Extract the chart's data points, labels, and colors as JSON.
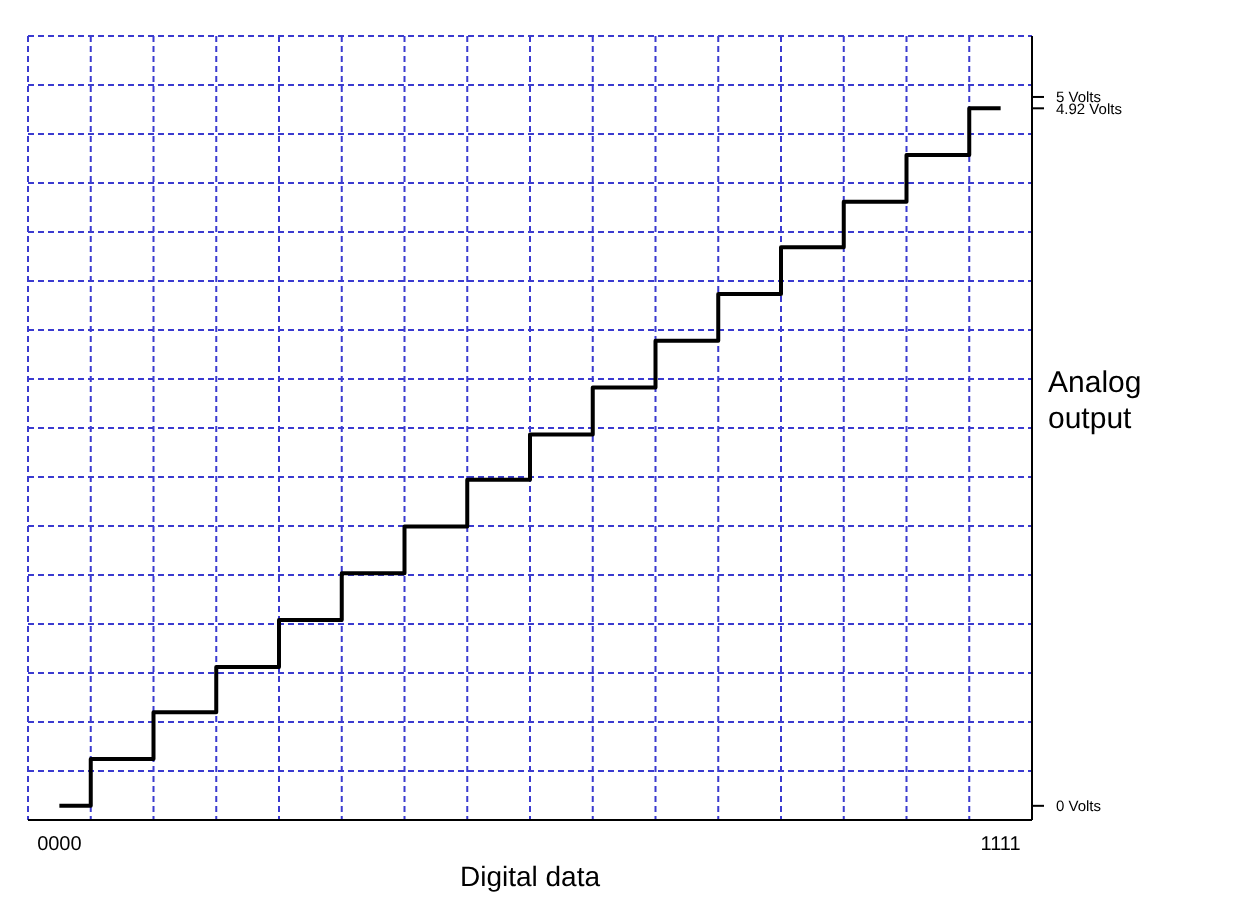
{
  "chart_data": {
    "type": "step",
    "xlabel": "Digital data",
    "ylabel": "Analog output",
    "categories": [
      "0000",
      null,
      null,
      null,
      null,
      null,
      null,
      null,
      null,
      null,
      null,
      null,
      null,
      null,
      null,
      "1111"
    ],
    "values": [
      0,
      0.33,
      0.66,
      0.98,
      1.31,
      1.64,
      1.97,
      2.3,
      2.62,
      2.95,
      3.28,
      3.61,
      3.94,
      4.26,
      4.59,
      4.92
    ],
    "color": "#000000",
    "ylim": [
      -0.1,
      5.43
    ],
    "yticks": [
      {
        "value": 0,
        "label": "0 Volts"
      },
      {
        "value": 4.92,
        "label": "4.92 Volts"
      },
      {
        "value": 5,
        "label": "5 Volts"
      }
    ],
    "grid": true
  }
}
